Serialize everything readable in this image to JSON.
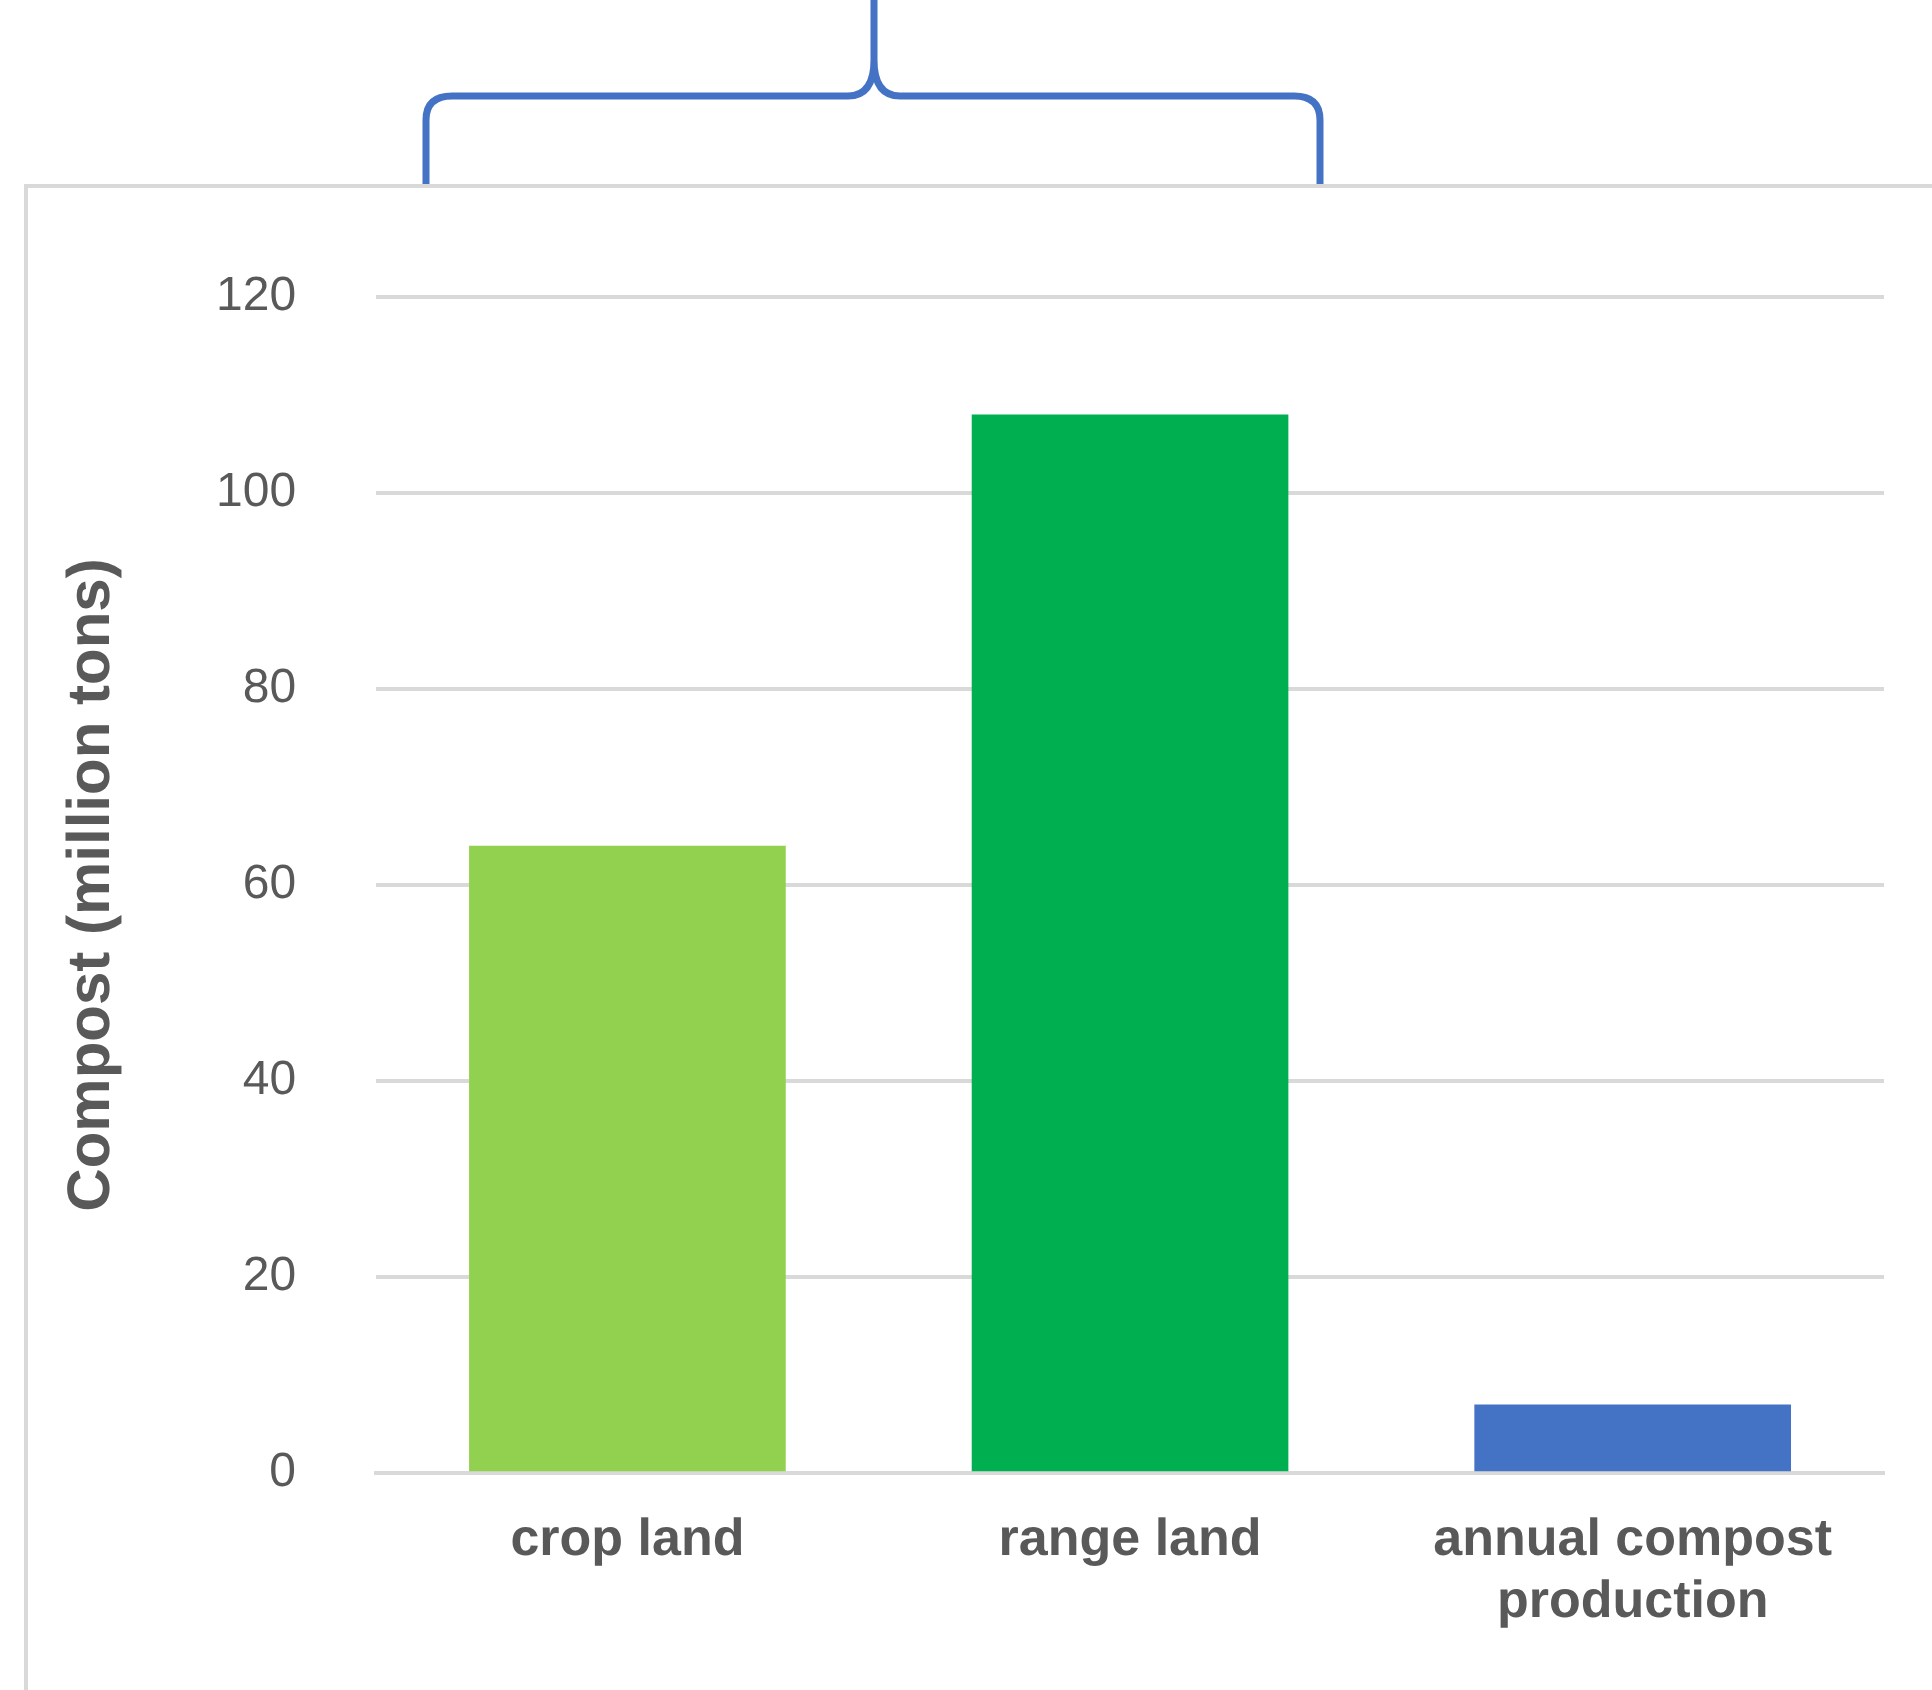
{
  "chart_data": {
    "type": "bar",
    "ylabel": "Compost (million tons)",
    "categories": [
      "crop land",
      "range land",
      "annual compost production"
    ],
    "values": [
      64,
      108,
      7
    ],
    "colors": [
      "#92d050",
      "#00b050",
      "#4472c4"
    ],
    "ylim": [
      0,
      120
    ],
    "yticks": [
      0,
      20,
      40,
      60,
      80,
      100,
      120
    ],
    "grid": "y",
    "legend": false
  }
}
